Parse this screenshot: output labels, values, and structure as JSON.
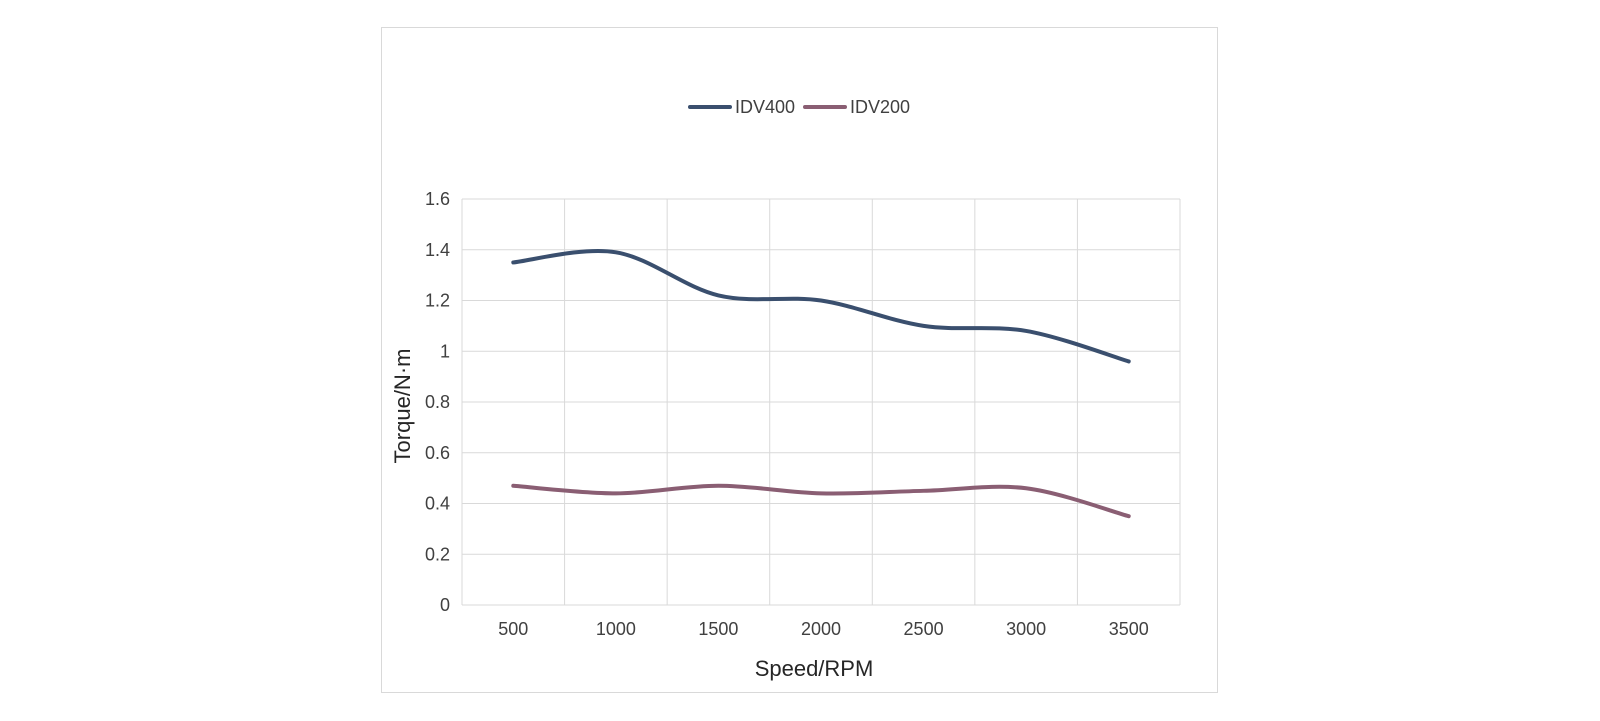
{
  "chart_data": {
    "type": "line",
    "title": "",
    "xlabel": "Speed/RPM",
    "ylabel": "Torque/N·m",
    "x": [
      500,
      1000,
      1500,
      2000,
      2500,
      3000,
      3500
    ],
    "x_tick_labels": [
      "500",
      "1000",
      "1500",
      "2000",
      "2500",
      "3000",
      "3500"
    ],
    "y_tick_labels": [
      "0",
      "0.2",
      "0.4",
      "0.6",
      "0.8",
      "1",
      "1.2",
      "1.4",
      "1.6"
    ],
    "ylim": [
      0,
      1.6
    ],
    "grid": true,
    "smooth": true,
    "legend_position": "top",
    "series": [
      {
        "name": "IDV400",
        "color": "#3a4f6e",
        "values": [
          1.35,
          1.39,
          1.22,
          1.2,
          1.1,
          1.08,
          0.96
        ]
      },
      {
        "name": "IDV200",
        "color": "#8a5e73",
        "values": [
          0.47,
          0.44,
          0.47,
          0.44,
          0.45,
          0.46,
          0.35
        ]
      }
    ]
  }
}
